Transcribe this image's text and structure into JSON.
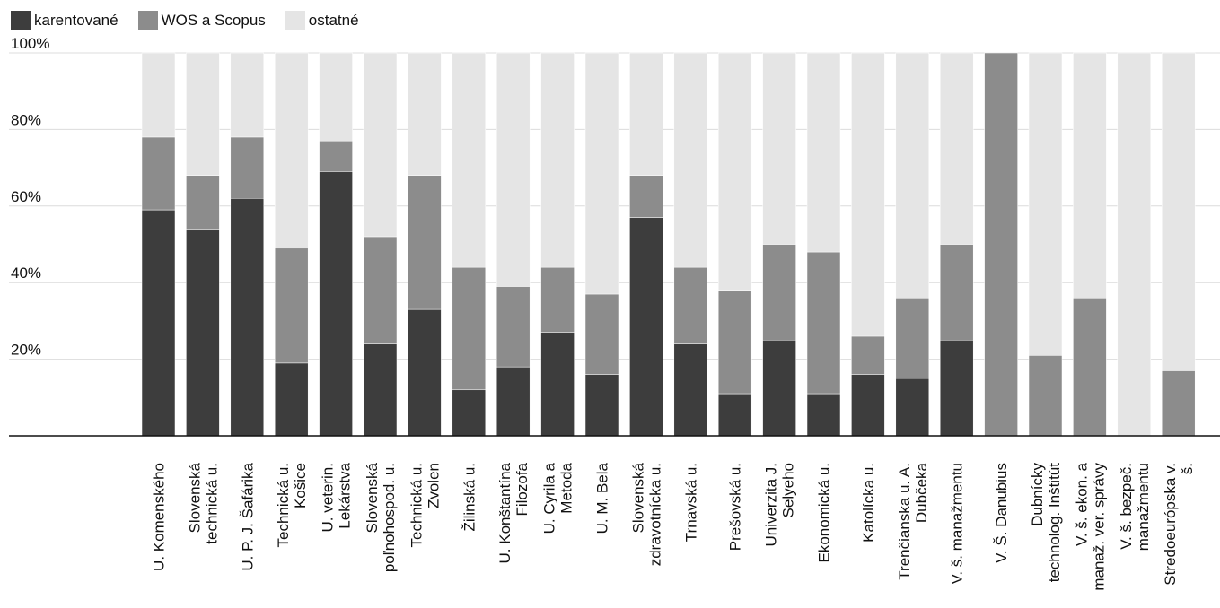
{
  "chart_data": {
    "type": "bar",
    "stacked": true,
    "ylim": [
      0,
      100
    ],
    "yticks": [
      "20%",
      "40%",
      "60%",
      "80%",
      "100%"
    ],
    "ytick_values": [
      20,
      40,
      60,
      80,
      100
    ],
    "grid": "horizontal",
    "legend_position": "top-left",
    "categories": [
      [
        "U. Komenského"
      ],
      [
        "Slovenská",
        "technická u."
      ],
      [
        "U. P. J. Šafárika"
      ],
      [
        "Technická u.",
        "Košice"
      ],
      [
        "U. veterin.",
        "Lekárstva"
      ],
      [
        "Slovenská",
        "poľnohospod. u."
      ],
      [
        "Technická u.",
        "Zvolen"
      ],
      [
        "Žilinská u."
      ],
      [
        "U. Konštantína",
        "Filozofa"
      ],
      [
        "U. Cyrila a",
        "Metoda"
      ],
      [
        "U. M. Bela"
      ],
      [
        "Slovenská",
        "zdravotnícka u."
      ],
      [
        "Trnavská u."
      ],
      [
        "Prešovská u."
      ],
      [
        "Univerzita J.",
        "Selyeho"
      ],
      [
        "Ekonomická u."
      ],
      [
        "Katolícka u."
      ],
      [
        "Trenčianska u. A.",
        "Dubčeka"
      ],
      [
        "V. š. manažmentu"
      ],
      [
        "V. Š. Danubius"
      ],
      [
        "Dubnícky",
        "technolog. Inštitút"
      ],
      [
        "V. š. ekon. a",
        "manaž. ver. správy"
      ],
      [
        "V. š. bezpeč.",
        "manažmentu"
      ],
      [
        "Stredoeurópska v.",
        "š."
      ]
    ],
    "series": [
      {
        "name": "karentované",
        "color": "#3d3d3d",
        "values": [
          59,
          54,
          62,
          19,
          69,
          24,
          33,
          12,
          18,
          27,
          16,
          57,
          24,
          11,
          25,
          11,
          16,
          15,
          25,
          0,
          0,
          0,
          0,
          0
        ]
      },
      {
        "name": "WOS a Scopus",
        "color": "#8c8c8c",
        "values": [
          19,
          14,
          16,
          30,
          8,
          28,
          35,
          32,
          21,
          17,
          21,
          11,
          20,
          27,
          25,
          37,
          10,
          21,
          25,
          100,
          21,
          36,
          0,
          17
        ]
      },
      {
        "name": "ostatné",
        "color": "#e5e5e5",
        "values": [
          22,
          32,
          22,
          51,
          23,
          48,
          32,
          56,
          61,
          56,
          63,
          32,
          56,
          62,
          50,
          52,
          74,
          64,
          50,
          0,
          79,
          64,
          100,
          83
        ]
      }
    ]
  }
}
